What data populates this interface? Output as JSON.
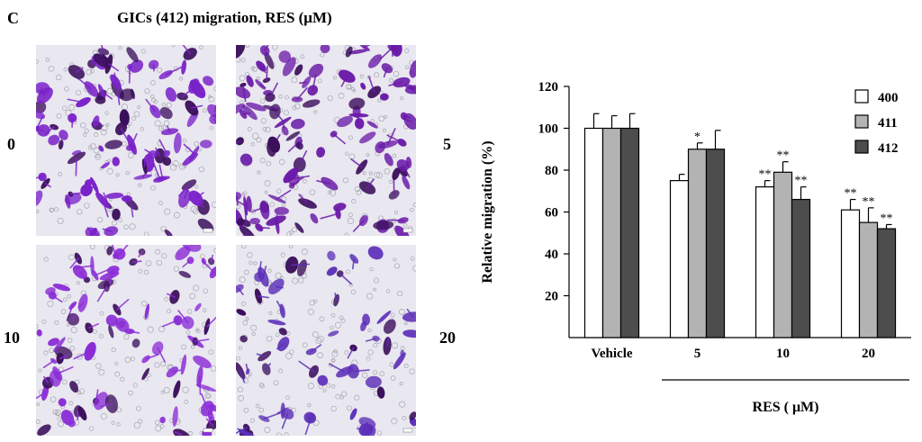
{
  "panel_label": "C",
  "title": "GICs (412) migration, RES (μM)",
  "micrographs": [
    {
      "label": "0",
      "density": 1.0,
      "color": "#7a22c9"
    },
    {
      "label": "5",
      "density": 1.1,
      "color": "#6a1aa8"
    },
    {
      "label": "10",
      "density": 0.85,
      "color": "#8a2bd6"
    },
    {
      "label": "20",
      "density": 0.6,
      "color": "#5c2fb8"
    }
  ],
  "chart_data": {
    "type": "bar",
    "categories": [
      "Vehicle",
      "5",
      "10",
      "20"
    ],
    "series": [
      {
        "name": "400",
        "color": "#ffffff",
        "values": [
          100,
          75,
          72,
          61
        ],
        "errors": [
          7,
          3,
          3,
          5
        ],
        "marks": [
          "",
          "",
          "**",
          "**"
        ]
      },
      {
        "name": "411",
        "color": "#b3b3b3",
        "values": [
          100,
          90,
          79,
          55
        ],
        "errors": [
          6,
          3,
          5,
          7
        ],
        "marks": [
          "",
          "*",
          "**",
          "**"
        ]
      },
      {
        "name": "412",
        "color": "#4d4d4d",
        "values": [
          100,
          90,
          66,
          52
        ],
        "errors": [
          7,
          9,
          6,
          2
        ],
        "marks": [
          "",
          "",
          "**",
          "**"
        ]
      }
    ],
    "ylabel": "Relative migration (%)",
    "xlabel": "RES ( μM)",
    "ylim": [
      0,
      120
    ],
    "yticks": [
      20,
      40,
      60,
      80,
      100,
      120
    ],
    "legend_position": "top-right",
    "grid": false
  }
}
